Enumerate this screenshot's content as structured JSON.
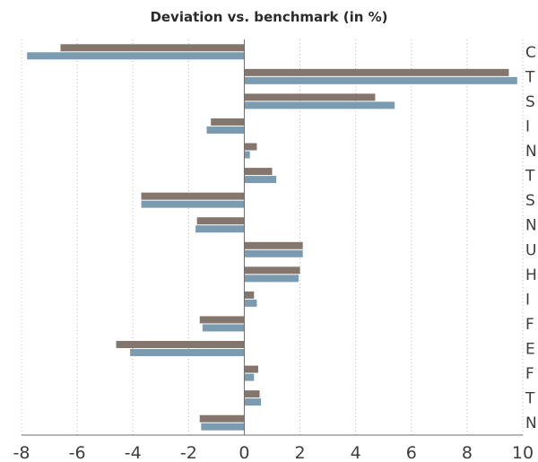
{
  "chart_data": {
    "type": "bar",
    "orientation": "horizontal",
    "title": "Deviation vs. benchmark (in %)",
    "categories": [
      "C",
      "T",
      "S",
      "I",
      "N",
      "T",
      "S",
      "N",
      "U",
      "H",
      "I",
      "F",
      "E",
      "F",
      "T",
      "N"
    ],
    "series": [
      {
        "values": [
          -6.6,
          9.5,
          4.7,
          -1.2,
          0.45,
          1.0,
          -3.7,
          -1.7,
          2.1,
          2.0,
          0.35,
          -1.6,
          -4.6,
          0.5,
          0.55,
          -1.6
        ]
      },
      {
        "values": [
          -7.8,
          9.8,
          5.4,
          -1.35,
          0.2,
          1.15,
          -3.7,
          -1.75,
          2.1,
          1.95,
          0.45,
          -1.5,
          -4.1,
          0.35,
          0.6,
          -1.55
        ]
      }
    ],
    "xlim": [
      -8,
      10
    ],
    "xticks": [
      -8,
      -6,
      -4,
      -2,
      0,
      2,
      4,
      6,
      8,
      10
    ],
    "grid": true,
    "legend": "none",
    "colors": [
      "#84766d",
      "#7a9bb0"
    ]
  }
}
